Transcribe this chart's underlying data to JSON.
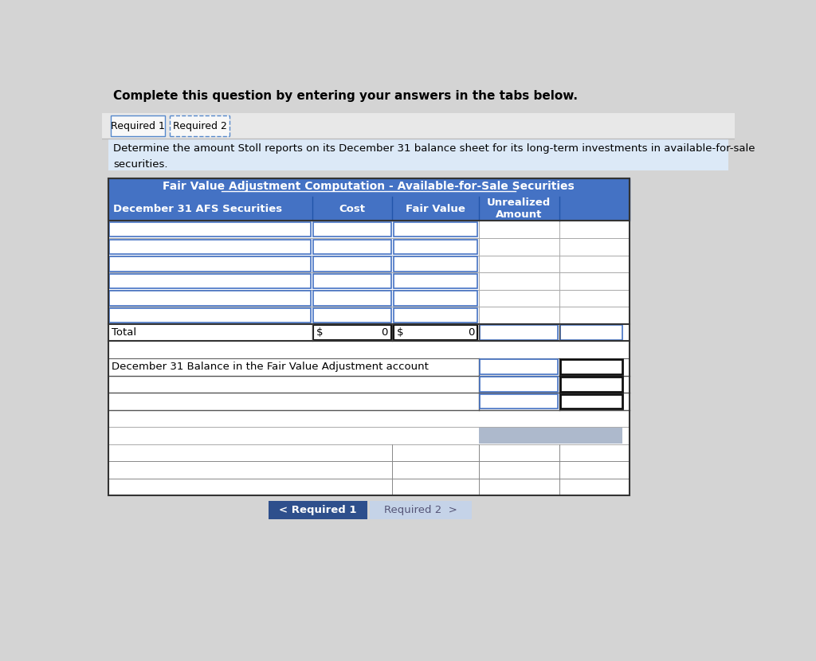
{
  "header_text": "Complete this question by entering your answers in the tabs below.",
  "tab1": "Required 1",
  "tab2": "Required 2",
  "instruction_line1": "Determine the amount Stoll reports on its December 31 balance sheet for its long-term investments in available-for-sale",
  "instruction_line2": "securities.",
  "table_title": "Fair Value Adjustment Computation - Available-for-Sale Securities",
  "col0": "December 31 AFS Securities",
  "col1": "Cost",
  "col2": "Fair Value",
  "col3": "Unrealized\nAmount",
  "col4": "",
  "data_rows": 6,
  "total_label": "Total",
  "fva_label": "December 31 Balance in the Fair Value Adjustment account",
  "btn1_text": "< Required 1",
  "btn2_text": "Required 2  >",
  "page_bg": "#d4d4d4",
  "header_bg": "#d4d4d4",
  "tab_area_bg": "#e8e8e8",
  "active_tab_bg": "#f8f8f8",
  "instruction_bg": "#dce9f7",
  "table_header_bg": "#4472c4",
  "table_header_text": "#ffffff",
  "input_border_blue": "#4472c4",
  "input_border_black": "#111111",
  "row_border": "#888888",
  "total_border": "#333333",
  "gray_cell_bg": "#adb9cc",
  "btn1_bg": "#2e4f8c",
  "btn2_bg": "#c5d3e8",
  "btn1_text_color": "#ffffff",
  "btn2_text_color": "#555577",
  "white": "#ffffff",
  "black": "#000000",
  "tab_dot_border": "#5588cc"
}
